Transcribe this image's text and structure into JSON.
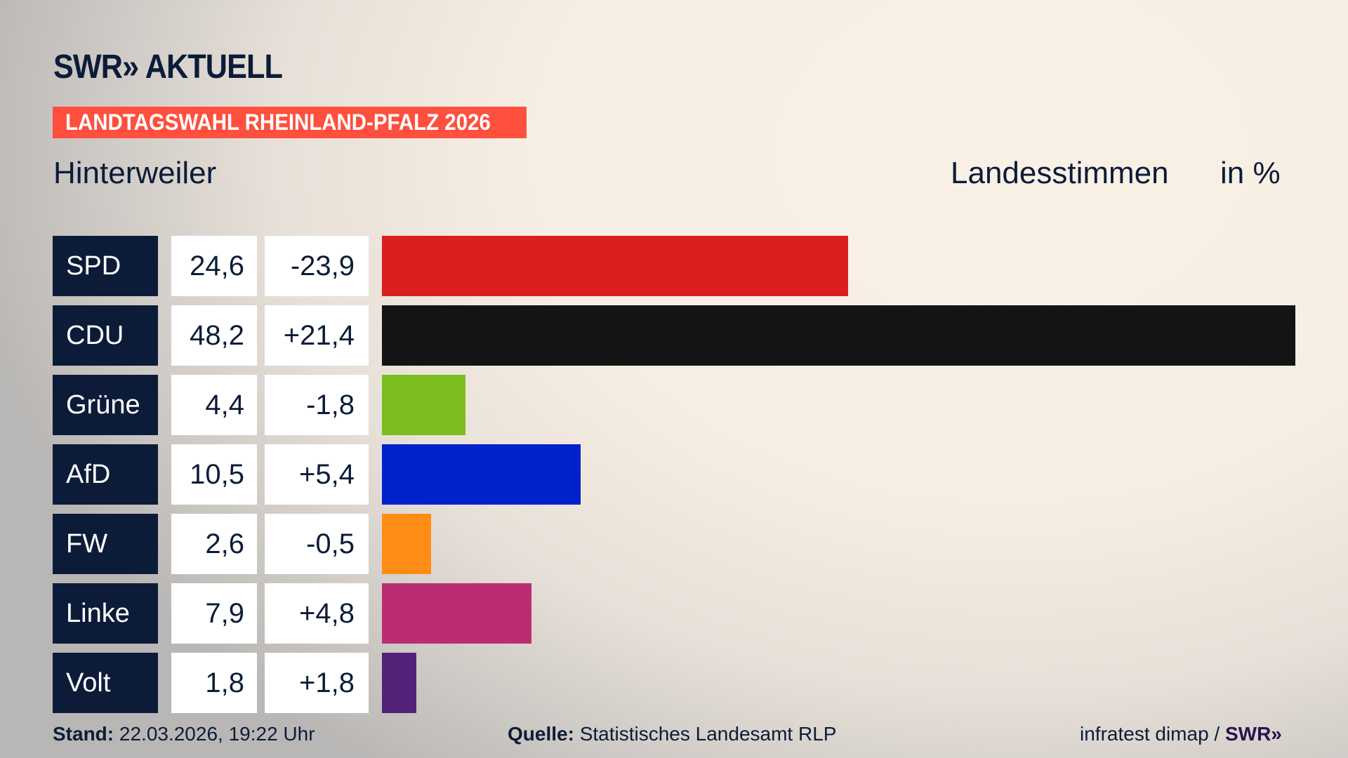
{
  "header": {
    "logo": "SWR» AKTUELL",
    "banner": "LANDTAGSWAHL RHEINLAND-PFALZ 2026",
    "location": "Hinterweiler",
    "vote_type": "Landesstimmen",
    "unit": "in %"
  },
  "chart_data": {
    "type": "bar",
    "orientation": "horizontal",
    "categories": [
      "SPD",
      "CDU",
      "Grüne",
      "AfD",
      "FW",
      "Linke",
      "Volt"
    ],
    "values": [
      24.6,
      48.2,
      4.4,
      10.5,
      2.6,
      7.9,
      1.8
    ],
    "value_labels": [
      "24,6",
      "48,2",
      "4,4",
      "10,5",
      "2,6",
      "7,9",
      "1,8"
    ],
    "diff_labels": [
      "-23,9",
      "+21,4",
      "-1,8",
      "+5,4",
      "-0,5",
      "+4,8",
      "+1,8"
    ],
    "colors": [
      "#d91f1f",
      "#141414",
      "#7bbd1d",
      "#0022cc",
      "#ff8c14",
      "#bb2d72",
      "#532278"
    ],
    "xlim": [
      0,
      48.2
    ],
    "grid": false
  },
  "footer": {
    "stand_label": "Stand:",
    "stand_value": "22.03.2026, 19:22 Uhr",
    "source_label": "Quelle:",
    "source_value": "Statistisches Landesamt RLP",
    "credit": "infratest dimap /",
    "credit_logo": "SWR»"
  }
}
